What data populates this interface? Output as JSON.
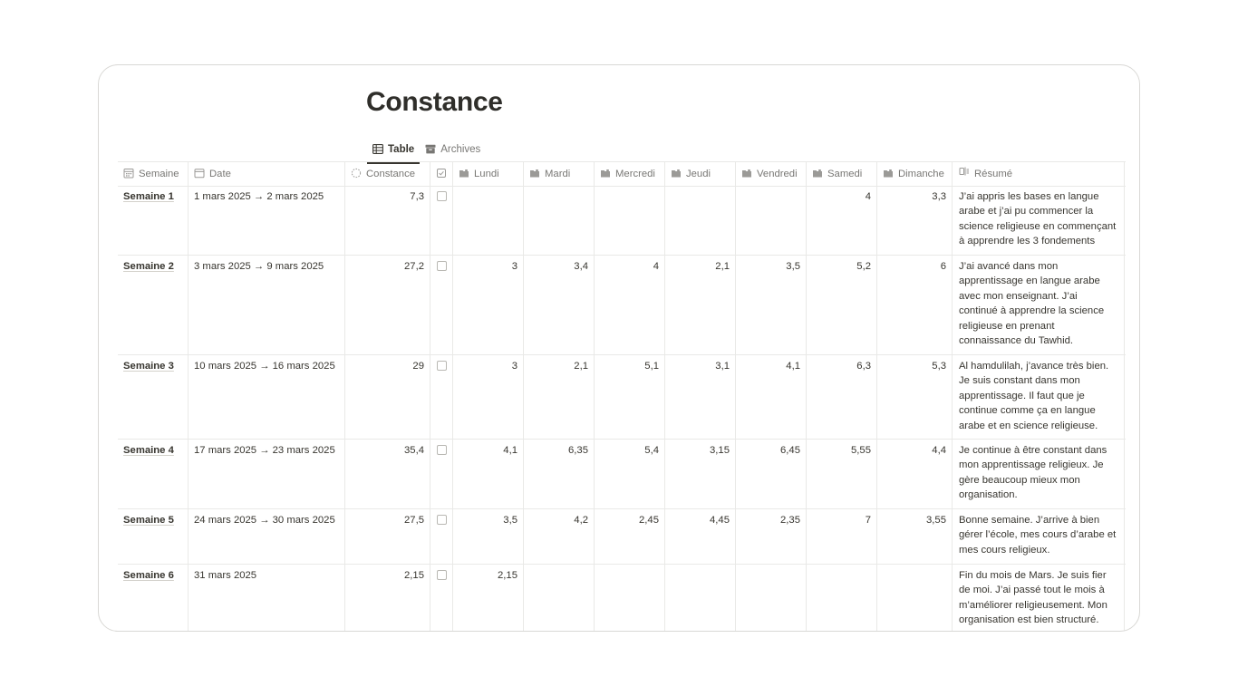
{
  "page": {
    "title": "Constance"
  },
  "views": [
    {
      "label": "Table",
      "icon": "table-icon",
      "active": true
    },
    {
      "label": "Archives",
      "icon": "archive-icon",
      "active": false
    }
  ],
  "columns": {
    "semaine": "Semaine",
    "date": "Date",
    "constance": "Constance",
    "lundi": "Lundi",
    "mardi": "Mardi",
    "mercredi": "Mercredi",
    "jeudi": "Jeudi",
    "vendredi": "Vendredi",
    "samedi": "Samedi",
    "dimanche": "Dimanche",
    "resume": "Résumé"
  },
  "rows": [
    {
      "semaine": "Semaine 1",
      "date": "1 mars 2025 → 2 mars 2025",
      "constance": "7,3",
      "checked": false,
      "lundi": "",
      "mardi": "",
      "mercredi": "",
      "jeudi": "",
      "vendredi": "",
      "samedi": "4",
      "dimanche": "3,3",
      "resume": "J’ai appris les bases en langue arabe et j’ai pu commencer la science religieuse en commençant à apprendre les 3 fondements"
    },
    {
      "semaine": "Semaine 2",
      "date": "3 mars 2025 → 9 mars 2025",
      "constance": "27,2",
      "checked": false,
      "lundi": "3",
      "mardi": "3,4",
      "mercredi": "4",
      "jeudi": "2,1",
      "vendredi": "3,5",
      "samedi": "5,2",
      "dimanche": "6",
      "resume": "J’ai avancé dans mon apprentissage en langue arabe avec mon enseignant. J’ai continué à apprendre la science religieuse en prenant connaissance du Tawhid."
    },
    {
      "semaine": "Semaine 3",
      "date": "10 mars 2025 → 16 mars 2025",
      "constance": "29",
      "checked": false,
      "lundi": "3",
      "mardi": "2,1",
      "mercredi": "5,1",
      "jeudi": "3,1",
      "vendredi": "4,1",
      "samedi": "6,3",
      "dimanche": "5,3",
      "resume": "Al hamdulilah, j’avance très bien. Je suis constant dans mon apprentissage. Il faut que je continue comme ça en langue arabe et en science religieuse."
    },
    {
      "semaine": "Semaine 4",
      "date": "17 mars 2025 → 23 mars 2025",
      "constance": "35,4",
      "checked": false,
      "lundi": "4,1",
      "mardi": "6,35",
      "mercredi": "5,4",
      "jeudi": "3,15",
      "vendredi": "6,45",
      "samedi": "5,55",
      "dimanche": "4,4",
      "resume": "Je continue à être constant dans mon apprentissage religieux. Je gère beaucoup mieux mon organisation."
    },
    {
      "semaine": "Semaine 5",
      "date": "24 mars 2025 → 30 mars 2025",
      "constance": "27,5",
      "checked": false,
      "lundi": "3,5",
      "mardi": "4,2",
      "mercredi": "2,45",
      "jeudi": "4,45",
      "vendredi": "2,35",
      "samedi": "7",
      "dimanche": "3,55",
      "resume": "Bonne semaine. J’arrive à bien gérer l’école, mes cours d’arabe et mes cours religieux."
    },
    {
      "semaine": "Semaine 6",
      "date": "31 mars 2025",
      "constance": "2,15",
      "checked": false,
      "lundi": "2,15",
      "mardi": "",
      "mercredi": "",
      "jeudi": "",
      "vendredi": "",
      "samedi": "",
      "dimanche": "",
      "resume": "Fin du mois de Mars. Je suis fier de moi. J’ai passé tout le mois à m’améliorer religieusement. Mon organisation est bien structuré."
    }
  ]
}
